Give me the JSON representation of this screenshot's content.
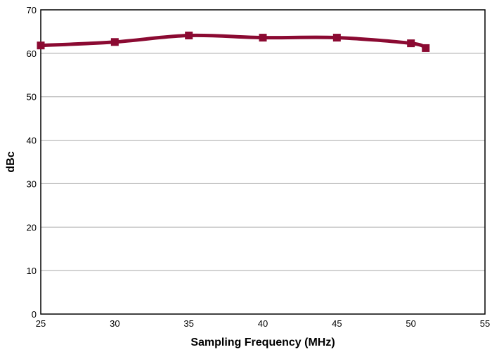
{
  "chart_data": {
    "type": "line",
    "title": "",
    "xlabel": "Sampling Frequency (MHz)",
    "ylabel": "dBc",
    "xlim": [
      25,
      55
    ],
    "ylim": [
      0,
      70
    ],
    "xticks": [
      25,
      30,
      35,
      40,
      45,
      50,
      55
    ],
    "yticks": [
      0,
      10,
      20,
      30,
      40,
      50,
      60,
      70
    ],
    "grid": "horizontal",
    "legend": "none",
    "series": [
      {
        "color": "#8b0a32",
        "marker": "square",
        "x": [
          25,
          30,
          35,
          40,
          45,
          50,
          51
        ],
        "y": [
          61.8,
          62.6,
          64.1,
          63.6,
          63.6,
          62.3,
          61.2
        ]
      }
    ]
  }
}
